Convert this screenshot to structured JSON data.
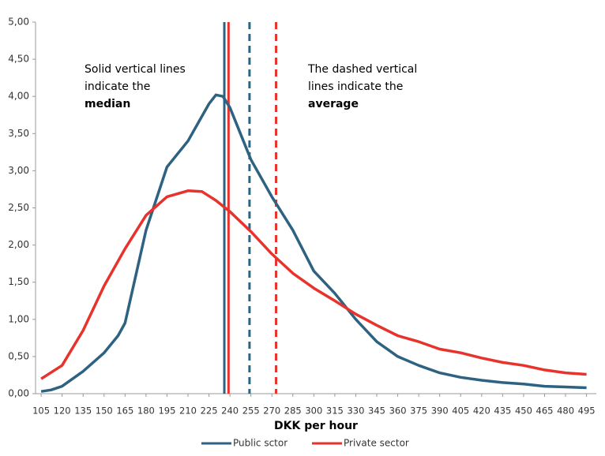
{
  "chart_data": {
    "type": "line",
    "x_label": "DKK per hour",
    "xlim": [
      101,
      502
    ],
    "xticks": [
      105,
      120,
      135,
      150,
      165,
      180,
      195,
      210,
      225,
      240,
      255,
      270,
      285,
      300,
      315,
      330,
      345,
      360,
      375,
      390,
      405,
      420,
      435,
      450,
      465,
      480,
      495
    ],
    "ylim": [
      0,
      5
    ],
    "yticks": [
      {
        "value": 0,
        "label": "0,00"
      },
      {
        "value": 0.5,
        "label": "0,50"
      },
      {
        "value": 1,
        "label": "1,00"
      },
      {
        "value": 1.5,
        "label": "1,50"
      },
      {
        "value": 2,
        "label": "2,00"
      },
      {
        "value": 2.5,
        "label": "2,50"
      },
      {
        "value": 3,
        "label": "3,00"
      },
      {
        "value": 3.5,
        "label": "3,50"
      },
      {
        "value": 4,
        "label": "4,00"
      },
      {
        "value": 4.5,
        "label": "4,50"
      },
      {
        "value": 5,
        "label": "5,00"
      }
    ],
    "legend": "bottom",
    "series": [
      {
        "name": "Public sctor",
        "color": "#2e6281",
        "x": [
          105,
          112,
          120,
          135,
          150,
          160,
          165,
          180,
          195,
          210,
          225,
          230,
          235,
          240,
          255,
          270,
          285,
          300,
          315,
          330,
          345,
          360,
          375,
          390,
          405,
          420,
          435,
          450,
          465,
          480,
          495
        ],
        "values": [
          0.03,
          0.05,
          0.1,
          0.3,
          0.55,
          0.78,
          0.95,
          2.2,
          3.05,
          3.4,
          3.9,
          4.02,
          4.0,
          3.85,
          3.15,
          2.65,
          2.2,
          1.65,
          1.35,
          1.0,
          0.7,
          0.5,
          0.38,
          0.28,
          0.22,
          0.18,
          0.15,
          0.13,
          0.1,
          0.09,
          0.08
        ]
      },
      {
        "name": "Private sector",
        "color": "#e8322c",
        "x": [
          105,
          120,
          135,
          150,
          165,
          180,
          195,
          210,
          220,
          230,
          240,
          255,
          270,
          285,
          300,
          315,
          330,
          345,
          360,
          375,
          390,
          405,
          420,
          435,
          450,
          465,
          480,
          495
        ],
        "values": [
          0.2,
          0.38,
          0.85,
          1.45,
          1.95,
          2.4,
          2.65,
          2.73,
          2.72,
          2.6,
          2.45,
          2.18,
          1.88,
          1.62,
          1.42,
          1.25,
          1.07,
          0.92,
          0.78,
          0.7,
          0.6,
          0.55,
          0.48,
          0.42,
          0.38,
          0.32,
          0.28,
          0.26
        ]
      }
    ],
    "reference_lines": [
      {
        "value": 236,
        "color": "#2e6281",
        "dashed": false
      },
      {
        "value": 239,
        "color": "#e8322c",
        "dashed": false
      },
      {
        "value": 254,
        "color": "#2e6281",
        "dashed": true
      },
      {
        "value": 273,
        "color": "#e8322c",
        "dashed": true
      }
    ],
    "annotations": [
      {
        "lines": [
          "Solid vertical lines",
          "indicate the"
        ],
        "bold": "median"
      },
      {
        "lines": [
          "The dashed vertical",
          "lines indicate the"
        ],
        "bold": "average"
      }
    ]
  }
}
